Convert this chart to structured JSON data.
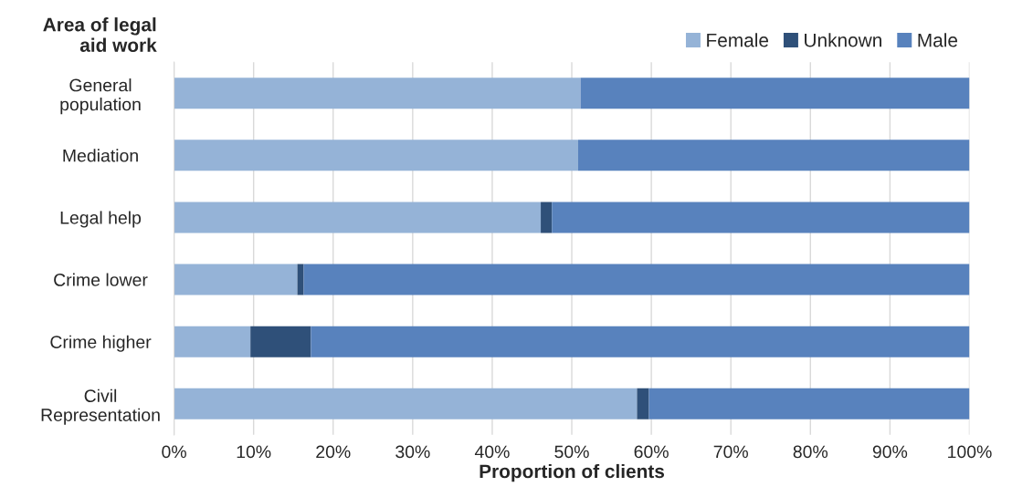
{
  "chart_data": {
    "type": "bar",
    "orientation": "horizontal",
    "stacked": true,
    "ylabel": "Area of legal aid work",
    "xlabel": "Proportion of clients",
    "categories": [
      "General\npopulation",
      "Mediation",
      "Legal help",
      "Crime lower",
      "Crime higher",
      "Civil\nRepresentation"
    ],
    "series": [
      {
        "name": "Female",
        "color": "#95b3d7",
        "values": [
          51.1,
          50.8,
          46.1,
          15.5,
          9.6,
          58.2
        ]
      },
      {
        "name": "Unknown",
        "color": "#2f5079",
        "values": [
          null,
          null,
          1.4,
          0.8,
          7.6,
          1.5
        ]
      },
      {
        "name": "Male",
        "color": "#5882bd",
        "values": [
          48.9,
          49.2,
          52.5,
          83.7,
          82.8,
          40.3
        ]
      }
    ],
    "xlim": [
      0,
      100
    ],
    "xticks": [
      {
        "value": 0,
        "label": "0%"
      },
      {
        "value": 10,
        "label": "10%"
      },
      {
        "value": 20,
        "label": "20%"
      },
      {
        "value": 30,
        "label": "30%"
      },
      {
        "value": 40,
        "label": "40%"
      },
      {
        "value": 50,
        "label": "50%"
      },
      {
        "value": 60,
        "label": "60%"
      },
      {
        "value": 70,
        "label": "70%"
      },
      {
        "value": 80,
        "label": "80%"
      },
      {
        "value": 90,
        "label": "90%"
      },
      {
        "value": 100,
        "label": "100%"
      }
    ],
    "grid": "x",
    "legend": "top right"
  }
}
